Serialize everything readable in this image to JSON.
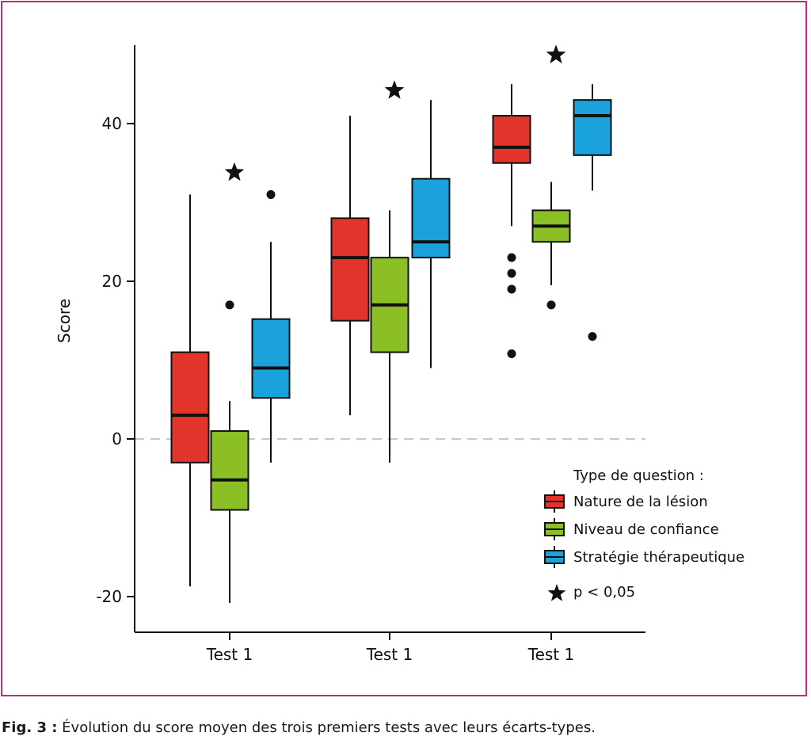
{
  "chart_data": {
    "type": "boxplot",
    "ylabel": "Score",
    "ylim": [
      -24,
      50
    ],
    "yticks": [
      -20,
      0,
      20,
      40
    ],
    "yticks_labels": [
      "-20",
      "0",
      "20",
      "40"
    ],
    "reference_line": 0,
    "categories": [
      "Test 1",
      "Test 1",
      "Test 1"
    ],
    "legend": {
      "title": "Type de question :",
      "significance_label": "p < 0,05",
      "placement": "bottom-right"
    },
    "series": [
      {
        "name": "Nature de la lésion",
        "color": "#e3342b",
        "boxes": [
          {
            "min": -18.7,
            "q1": -3,
            "median": 3,
            "q3": 11,
            "max": 31,
            "outliers": []
          },
          {
            "min": 3,
            "q1": 15,
            "median": 23,
            "q3": 28,
            "max": 41,
            "outliers": []
          },
          {
            "min": 27,
            "q1": 35,
            "median": 37,
            "q3": 41,
            "max": 45,
            "outliers": [
              23,
              21,
              19,
              10.8
            ]
          }
        ]
      },
      {
        "name": "Niveau de confiance",
        "color": "#8cbf26",
        "boxes": [
          {
            "min": -20.8,
            "q1": -9,
            "median": -5.2,
            "q3": 1,
            "max": 4.8,
            "outliers": [
              17
            ]
          },
          {
            "min": -3,
            "q1": 11,
            "median": 17,
            "q3": 23,
            "max": 29,
            "outliers": []
          },
          {
            "min": 19.5,
            "q1": 25,
            "median": 27,
            "q3": 29,
            "max": 32.6,
            "outliers": [
              17
            ]
          }
        ]
      },
      {
        "name": "Stratégie thérapeutique",
        "color": "#1ba1dc",
        "boxes": [
          {
            "min": -3,
            "q1": 5.2,
            "median": 9,
            "q3": 15.2,
            "max": 25,
            "outliers": [
              31
            ]
          },
          {
            "min": 9,
            "q1": 23,
            "median": 25,
            "q3": 33,
            "max": 43,
            "outliers": []
          },
          {
            "min": 31.5,
            "q1": 36,
            "median": 41,
            "q3": 43,
            "max": 45,
            "outliers": [
              13
            ]
          }
        ]
      }
    ],
    "significance_stars": [
      {
        "group": 0,
        "y": 33.8
      },
      {
        "group": 1,
        "y": 44.2
      },
      {
        "group": 2,
        "y": 48.7
      }
    ]
  },
  "caption": {
    "label": "Fig. 3 :",
    "text": " Évolution du score moyen des trois premiers tests avec leurs écarts-types."
  }
}
